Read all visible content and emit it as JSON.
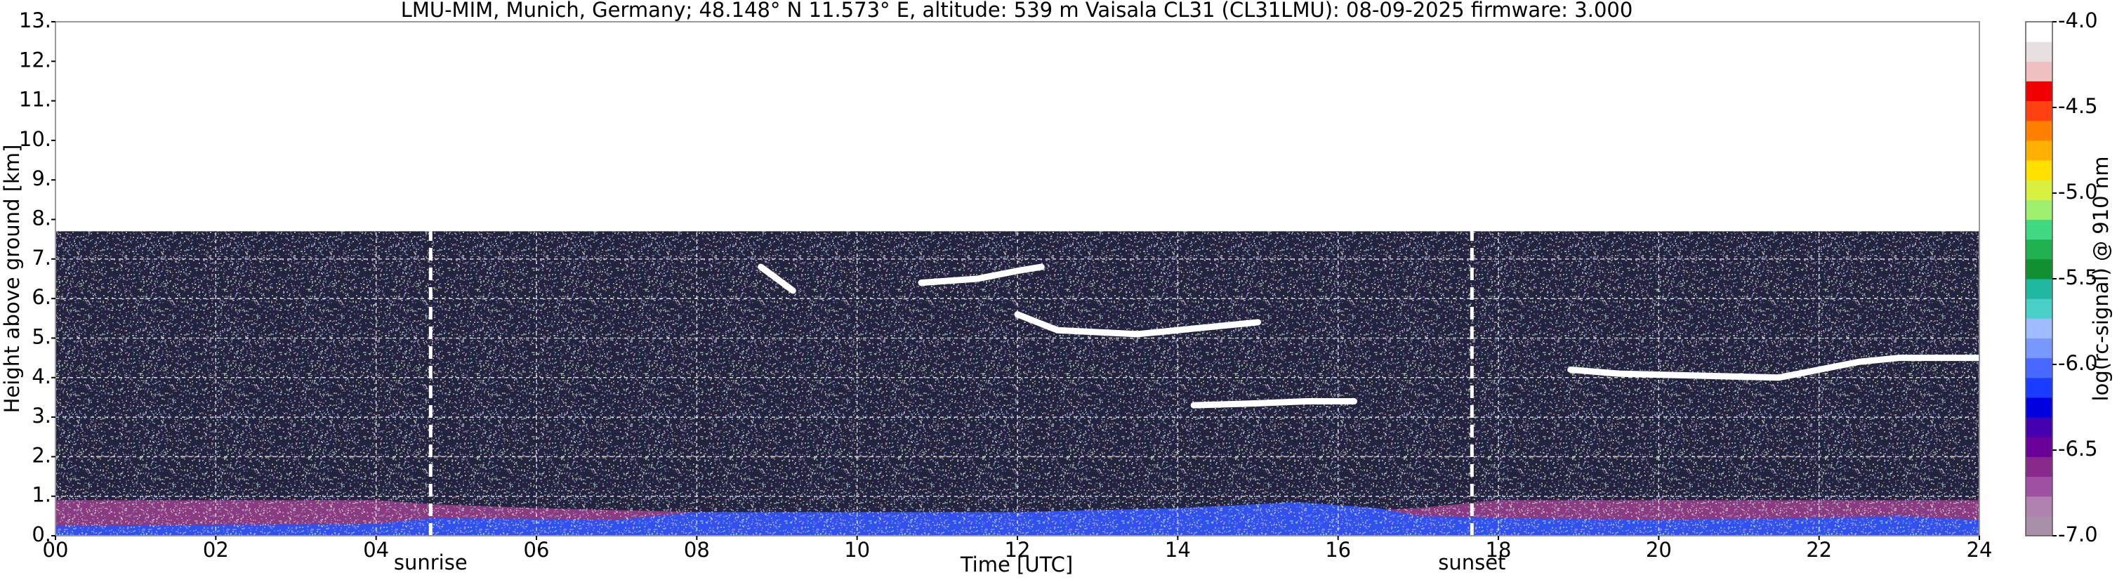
{
  "chart_data": {
    "type": "ceilometer",
    "title": "LMU-MIM, Munich, Germany; 48.148° N 11.573° E, altitude: 539 m    Vaisala CL31 (CL31LMU): 08-09-2025    firmware: 3.000",
    "x_label": "Time [UTC]",
    "y_label": "Height above ground [km]",
    "colorbar_label": "log(rc-signal) @ 910 nm",
    "xlim": [
      0,
      24
    ],
    "xticks": [
      {
        "value": 0,
        "label": "00"
      },
      {
        "value": 2,
        "label": "02"
      },
      {
        "value": 4,
        "label": "04"
      },
      {
        "value": 6,
        "label": "06"
      },
      {
        "value": 8,
        "label": "08"
      },
      {
        "value": 10,
        "label": "10"
      },
      {
        "value": 12,
        "label": "12"
      },
      {
        "value": 14,
        "label": "14"
      },
      {
        "value": 16,
        "label": "16"
      },
      {
        "value": 18,
        "label": "18"
      },
      {
        "value": 20,
        "label": "20"
      },
      {
        "value": 22,
        "label": "22"
      },
      {
        "value": 24,
        "label": "24"
      }
    ],
    "ylim": [
      0,
      13
    ],
    "yticks": [
      {
        "value": 0,
        "label": "0."
      },
      {
        "value": 1,
        "label": "1."
      },
      {
        "value": 2,
        "label": "2."
      },
      {
        "value": 3,
        "label": "3."
      },
      {
        "value": 4,
        "label": "4."
      },
      {
        "value": 5,
        "label": "5."
      },
      {
        "value": 6,
        "label": "6."
      },
      {
        "value": 7,
        "label": "7."
      },
      {
        "value": 8,
        "label": "8."
      },
      {
        "value": 9,
        "label": "9."
      },
      {
        "value": 10,
        "label": "10."
      },
      {
        "value": 11,
        "label": "11."
      },
      {
        "value": 12,
        "label": "12."
      },
      {
        "value": 13,
        "label": "13."
      }
    ],
    "grid": true,
    "zlim": [
      -7,
      -4
    ],
    "zticks": [
      {
        "value": -4,
        "label": "-4.0"
      },
      -4.5,
      {
        "value": -5,
        "label": "-5.0"
      },
      -5.5,
      {
        "value": -6,
        "label": "-6.0"
      },
      -6.5,
      {
        "value": -7,
        "label": "-7.0"
      }
    ],
    "colorscale": [
      "#a890a8",
      "#b080b0",
      "#a050a0",
      "#882a8c",
      "#6a0098",
      "#4400b0",
      "#0000e0",
      "#1a3cff",
      "#4868ff",
      "#7898ff",
      "#a0bcff",
      "#48d0c8",
      "#20b8a0",
      "#109030",
      "#20b050",
      "#40d880",
      "#a0f070",
      "#d8f040",
      "#ffe000",
      "#ffb000",
      "#ff8000",
      "#ff4010",
      "#f00000",
      "#f0c0c0",
      "#e8e0e0",
      "#ffffff"
    ],
    "areas": [
      {
        "color": "#23233f",
        "x": [
          0,
          24
        ],
        "values": [
          7.7,
          7.7
        ]
      },
      {
        "color": "#8a3a80",
        "x": [
          0,
          4,
          4.7,
          6,
          8,
          10,
          12,
          14,
          16,
          17,
          18,
          20,
          22,
          24
        ],
        "values": [
          0.9,
          0.9,
          0.8,
          0.7,
          0.6,
          0.5,
          0.5,
          0.6,
          0.6,
          0.7,
          0.9,
          0.9,
          0.9,
          0.9
        ]
      },
      {
        "color": "#3050f0",
        "x": [
          0,
          4,
          4.7,
          7,
          8,
          10,
          12,
          14,
          15.5,
          16.5,
          17,
          18,
          20,
          22,
          23,
          24
        ],
        "values": [
          0.25,
          0.3,
          0.45,
          0.4,
          0.6,
          0.6,
          0.6,
          0.7,
          0.85,
          0.7,
          0.5,
          0.45,
          0.4,
          0.45,
          0.5,
          0.4
        ]
      }
    ],
    "lines": [
      {
        "color": "#ffffff",
        "x": [
          8.8,
          9.0,
          9.2
        ],
        "values": [
          6.8,
          6.5,
          6.2
        ]
      },
      {
        "color": "#ffffff",
        "x": [
          10.8,
          11.5,
          12.0,
          12.3
        ],
        "values": [
          6.4,
          6.5,
          6.7,
          6.8
        ]
      },
      {
        "color": "#ffffff",
        "x": [
          12.0,
          12.5,
          13.5,
          14.5,
          15.0
        ],
        "values": [
          5.6,
          5.2,
          5.1,
          5.3,
          5.4
        ]
      },
      {
        "color": "#ffffff",
        "x": [
          14.2,
          15.0,
          15.6,
          16.2
        ],
        "values": [
          3.3,
          3.35,
          3.4,
          3.4
        ]
      },
      {
        "color": "#ffffff",
        "x": [
          18.9,
          19.5,
          20.5,
          21.5,
          22.0,
          22.5,
          23.0,
          24.0
        ],
        "values": [
          4.2,
          4.1,
          4.05,
          4.0,
          4.2,
          4.4,
          4.5,
          4.5
        ]
      }
    ],
    "annotations": [
      {
        "label": "sunrise",
        "x": 4.68
      },
      {
        "label": "sunset",
        "x": 17.67
      }
    ]
  }
}
